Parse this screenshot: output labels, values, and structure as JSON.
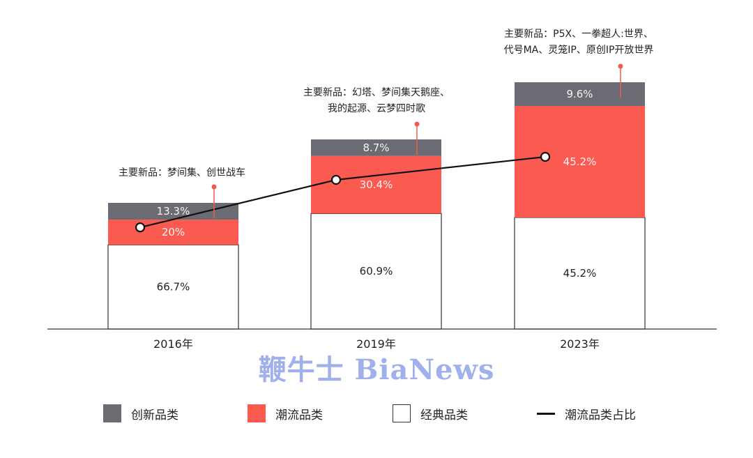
{
  "chart_data": {
    "type": "bar",
    "stacked": true,
    "categories": [
      "2016年",
      "2019年",
      "2023年"
    ],
    "series": [
      {
        "name": "经典品类",
        "values": [
          66.7,
          60.9,
          45.2
        ],
        "color": "#ffffff",
        "labels": [
          "66.7%",
          "60.9%",
          "45.2%"
        ]
      },
      {
        "name": "潮流品类",
        "values": [
          20,
          30.4,
          45.2
        ],
        "color": "#fa5a50",
        "labels": [
          "20%",
          "30.4%",
          "45.2%"
        ]
      },
      {
        "name": "创新品类",
        "values": [
          13.3,
          8.7,
          9.6
        ],
        "color": "#6b6b73",
        "labels": [
          "13.3%",
          "8.7%",
          "9.6%"
        ]
      }
    ],
    "line_series": {
      "name": "潮流品类占比",
      "values": [
        20,
        30.4,
        45.2
      ],
      "color": "#111111"
    },
    "annotations": [
      {
        "category": "2016年",
        "lines": [
          "主要新品：梦间集、创世战车"
        ]
      },
      {
        "category": "2019年",
        "lines": [
          "主要新品：幻塔、梦间集天鹅座、",
          "我的起源、云梦四时歌"
        ]
      },
      {
        "category": "2023年",
        "lines": [
          "主要新品：P5X、一拳超人:世界、",
          "代号MA、灵笼IP、原创IP开放世界"
        ]
      }
    ],
    "legend_position": "bottom",
    "grid": false
  },
  "legend": [
    {
      "label": "创新品类",
      "kind": "swatch",
      "color": "#6b6b73"
    },
    {
      "label": "潮流品类",
      "kind": "swatch",
      "color": "#fa5a50"
    },
    {
      "label": "经典品类",
      "kind": "swatch",
      "color": "#ffffff"
    },
    {
      "label": "潮流品类占比",
      "kind": "line",
      "color": "#111111"
    }
  ],
  "watermark": "鞭牛士 BiaNews"
}
